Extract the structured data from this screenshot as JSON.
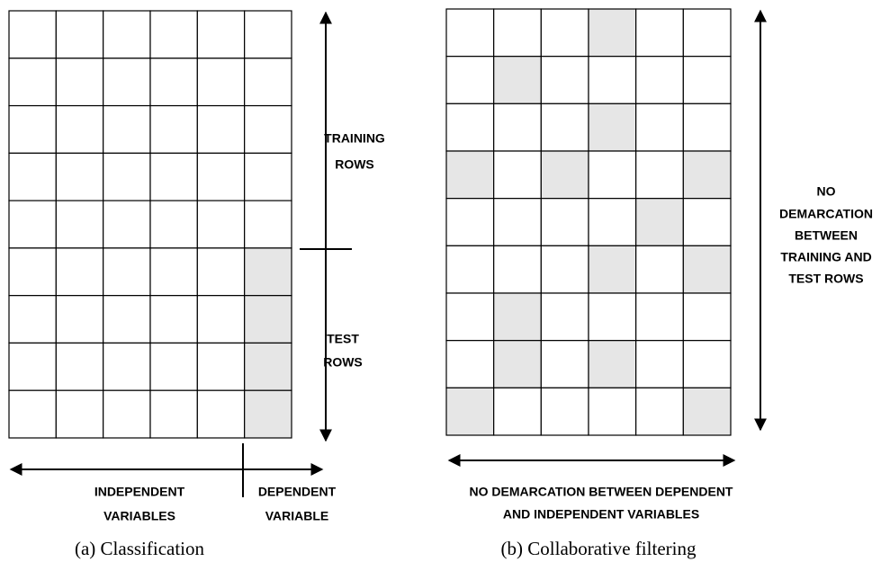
{
  "panel_a": {
    "training_label": [
      "TRAINING",
      "ROWS"
    ],
    "test_label": [
      "TEST",
      "ROWS"
    ],
    "independent_label": [
      "INDEPENDENT",
      "VARIABLES"
    ],
    "dependent_label": [
      "DEPENDENT",
      "VARIABLE"
    ],
    "caption": "(a) Classification"
  },
  "panel_b": {
    "rows_label": [
      "NO",
      "DEMARCATION",
      "BETWEEN",
      "TRAINING AND",
      "TEST ROWS"
    ],
    "columns_label": [
      "NO DEMARCATION BETWEEN DEPENDENT",
      "AND INDEPENDENT VARIABLES"
    ],
    "caption": "(b) Collaborative filtering"
  }
}
